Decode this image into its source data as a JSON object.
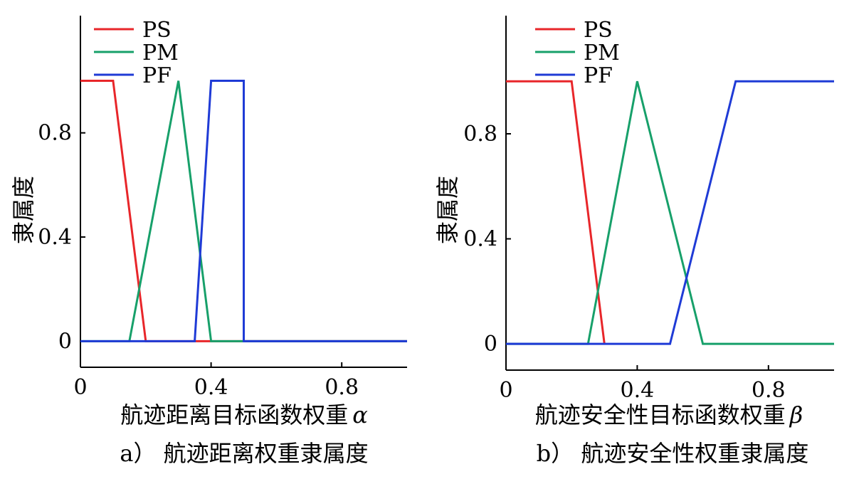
{
  "colors": {
    "PS": "#e8262a",
    "PM": "#17a06a",
    "PF": "#1f3bd6"
  },
  "chart_data": [
    {
      "type": "line",
      "caption": "a） 航迹距离权重隶属度",
      "xlabel": "航迹距离目标函数权重",
      "xlabel_symbol": "α",
      "ylabel": "隶属度",
      "xlim": [
        0,
        1
      ],
      "ylim": [
        -0.1,
        1.25
      ],
      "xticks": [
        0,
        0.4,
        0.8
      ],
      "xtick_labels": [
        "0",
        "0.4",
        "0.8"
      ],
      "yticks": [
        0,
        0.4,
        0.8
      ],
      "ytick_labels": [
        "0",
        "0.4",
        "0.8"
      ],
      "legend": [
        "PS",
        "PM",
        "PF"
      ],
      "legend_position": "top-left",
      "series": [
        {
          "name": "PS",
          "x": [
            0,
            0.1,
            0.2,
            1.0
          ],
          "y": [
            1,
            1,
            0,
            0
          ]
        },
        {
          "name": "PM",
          "x": [
            0,
            0.15,
            0.3,
            0.4,
            1.0
          ],
          "y": [
            0,
            0,
            1,
            0,
            0
          ]
        },
        {
          "name": "PF",
          "x": [
            0,
            0.35,
            0.4,
            0.5,
            0.5,
            1.0
          ],
          "y": [
            0,
            0,
            1,
            1,
            0,
            0
          ]
        }
      ]
    },
    {
      "type": "line",
      "caption": "b） 航迹安全性权重隶属度",
      "xlabel": "航迹安全性目标函数权重",
      "xlabel_symbol": "β",
      "ylabel": "隶属度",
      "xlim": [
        0,
        1
      ],
      "ylim": [
        -0.1,
        1.25
      ],
      "xticks": [
        0,
        0.4,
        0.8
      ],
      "xtick_labels": [
        "0",
        "0.4",
        "0.8"
      ],
      "yticks": [
        0,
        0.4,
        0.8
      ],
      "ytick_labels": [
        "0",
        "0.4",
        "0.8"
      ],
      "legend": [
        "PS",
        "PM",
        "PF"
      ],
      "legend_position": "top-left",
      "series": [
        {
          "name": "PS",
          "x": [
            0,
            0.2,
            0.3
          ],
          "y": [
            1,
            1,
            0
          ]
        },
        {
          "name": "PM",
          "x": [
            0,
            0.25,
            0.4,
            0.6,
            1.0
          ],
          "y": [
            0,
            0,
            1,
            0,
            0
          ]
        },
        {
          "name": "PF",
          "x": [
            0,
            0.5,
            0.7,
            1.0
          ],
          "y": [
            0,
            0,
            1,
            1
          ]
        }
      ]
    }
  ]
}
